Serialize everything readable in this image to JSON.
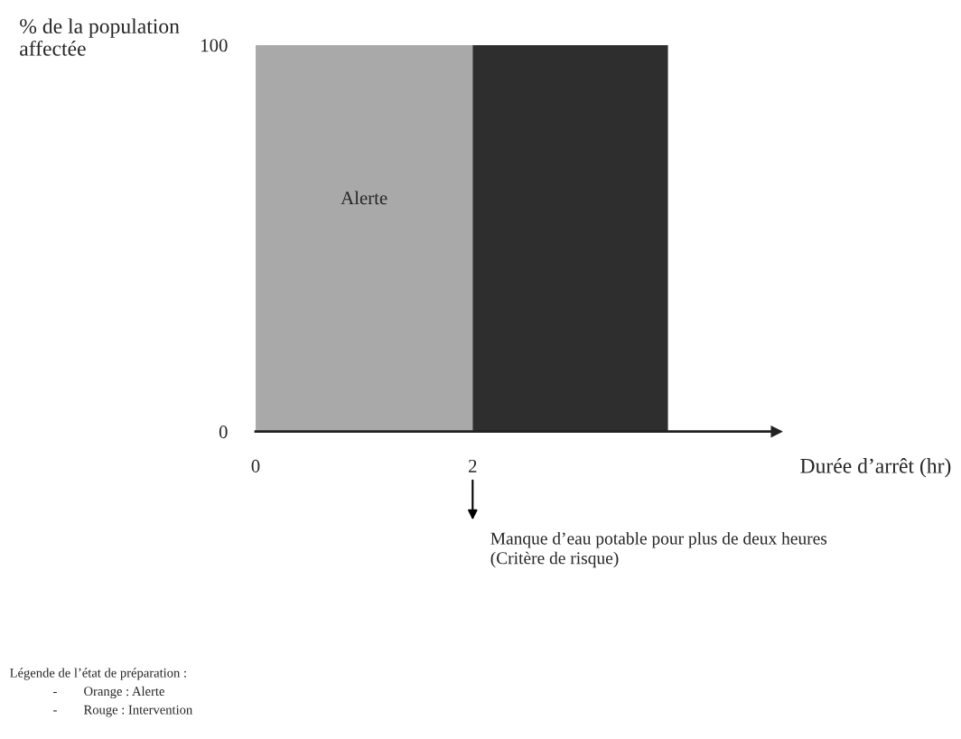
{
  "chart_data": {
    "type": "area",
    "ylabel": "% de la population\naffectée",
    "xlabel": "Durée d’arrêt (hr)",
    "xlim": [
      0,
      4.8
    ],
    "ylim": [
      0,
      100
    ],
    "xticks": [
      0,
      2
    ],
    "yticks": [
      0,
      100
    ],
    "series": [
      {
        "name": "Alerte",
        "color": "#a9a9a9",
        "x": [
          0,
          2
        ],
        "values": [
          100,
          100
        ]
      },
      {
        "color": "#2e2e2e",
        "x": [
          2,
          3.8
        ],
        "values": [
          100,
          100
        ]
      }
    ],
    "annotations": [
      "Manque d’eau potable pour plus de deux heures\n(Critère de risque)",
      "Légende de l’état de préparation :",
      "-        Orange : Alerte",
      "-        Rouge : Intervention"
    ]
  }
}
